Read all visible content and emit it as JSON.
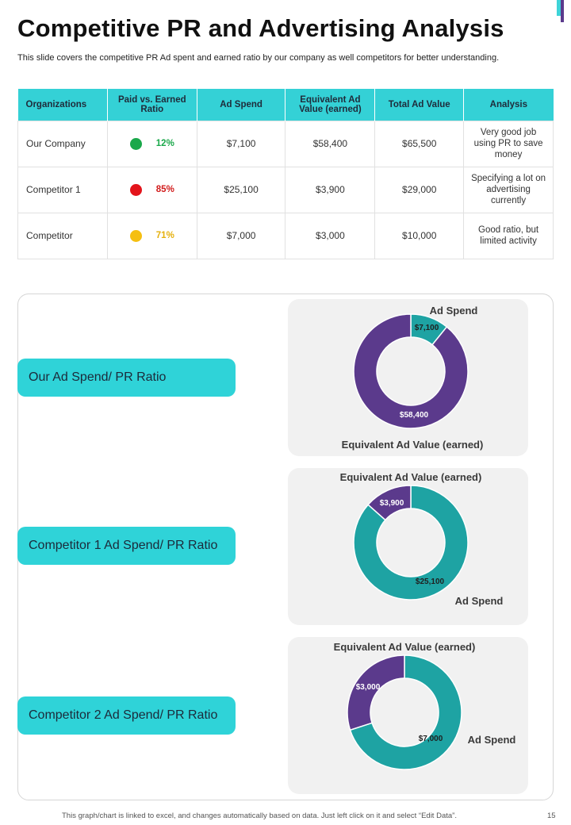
{
  "title": "Competitive PR and Advertising Analysis",
  "subtitle": "This slide covers the competitive PR Ad spent and earned ratio by our company as well competitors for better understanding.",
  "table": {
    "headers": [
      "Organizations",
      "Paid vs. Earned Ratio",
      "Ad Spend",
      "Equivalent Ad Value (earned)",
      "Total Ad Value",
      "Analysis"
    ],
    "rows": [
      {
        "org": "Our Company",
        "status_color": "#1aa84a",
        "ratio": "12%",
        "ratio_color": "#1aa84a",
        "ad_spend": "$7,100",
        "equivalent": "$58,400",
        "total": "$65,500",
        "analysis": "Very good job using PR to save money"
      },
      {
        "org": "Competitor 1",
        "status_color": "#e3141b",
        "ratio": "85%",
        "ratio_color": "#d11a1a",
        "ad_spend": "$25,100",
        "equivalent": "$3,900",
        "total": "$29,000",
        "analysis": "Specifying a lot on advertising currently"
      },
      {
        "org": "Competitor",
        "status_color": "#f5bf12",
        "ratio": "71%",
        "ratio_color": "#e5b00c",
        "ad_spend": "$7,000",
        "equivalent": "$3,000",
        "total": "$10,000",
        "analysis": "Good ratio, but limited activity"
      }
    ]
  },
  "labels": [
    "Our Ad Spend/ PR Ratio",
    "Competitor 1 Ad Spend/ PR Ratio",
    "Competitor 2 Ad Spend/ PR Ratio"
  ],
  "colors": {
    "accent": "#34d1d6",
    "teal": "#1ea3a3",
    "purple": "#5b3a8c"
  },
  "chart_data": [
    {
      "type": "pie",
      "categories": [
        "Ad Spend",
        "Equivalent Ad Value (earned)"
      ],
      "values": [
        7100,
        58400
      ],
      "value_labels": [
        "$7,100",
        "$58,400"
      ],
      "colors": [
        "#1ea3a3",
        "#5b3a8c"
      ]
    },
    {
      "type": "pie",
      "categories": [
        "Ad Spend",
        "Equivalent Ad Value (earned)"
      ],
      "values": [
        25100,
        3900
      ],
      "value_labels": [
        "$25,100",
        "$3,900"
      ],
      "colors": [
        "#1ea3a3",
        "#5b3a8c"
      ]
    },
    {
      "type": "pie",
      "categories": [
        "Ad Spend",
        "Equivalent Ad Value (earned)"
      ],
      "values": [
        7000,
        3000
      ],
      "value_labels": [
        "$7,000",
        "$3,000"
      ],
      "colors": [
        "#1ea3a3",
        "#5b3a8c"
      ]
    }
  ],
  "footer": "This graph/chart is linked to excel, and changes automatically based on data. Just left click on it and select “Edit Data”.",
  "page_number": "15"
}
